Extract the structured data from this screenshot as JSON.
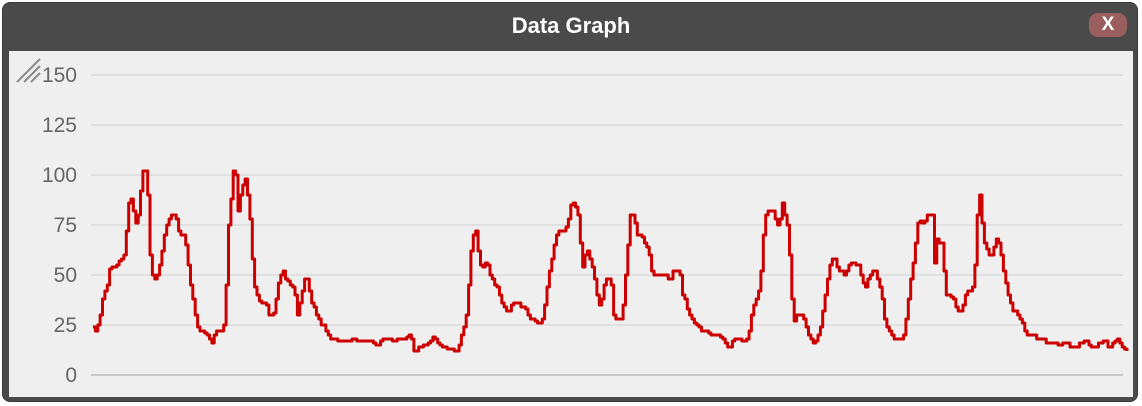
{
  "window": {
    "title": "Data Graph",
    "close_label": "X",
    "colors": {
      "titlebar": "#4a4a4a",
      "plot_background": "#efefef",
      "line": "#cc0000",
      "close_button": "#9a5e5e"
    }
  },
  "icons": {
    "resize": "resize-grip-icon"
  },
  "chart_data": {
    "type": "line",
    "title": "",
    "xlabel": "",
    "ylabel": "",
    "ylim": [
      0,
      160
    ],
    "yticks": [
      0,
      25,
      50,
      75,
      100,
      125,
      150
    ],
    "grid": true,
    "series": [
      {
        "color": "#cc0000",
        "values": [
          24,
          22,
          25,
          30,
          38,
          42,
          45,
          53,
          54,
          54,
          55,
          57,
          58,
          60,
          72,
          86,
          88,
          82,
          76,
          80,
          92,
          102,
          102,
          90,
          60,
          50,
          48,
          50,
          55,
          62,
          70,
          75,
          78,
          80,
          80,
          78,
          72,
          70,
          70,
          65,
          55,
          45,
          38,
          30,
          24,
          22,
          22,
          21,
          20,
          18,
          16,
          20,
          22,
          22,
          22,
          25,
          45,
          75,
          88,
          102,
          100,
          82,
          90,
          95,
          98,
          90,
          78,
          58,
          44,
          40,
          37,
          36,
          36,
          35,
          30,
          30,
          31,
          38,
          46,
          50,
          52,
          48,
          47,
          45,
          44,
          40,
          30,
          36,
          42,
          48,
          48,
          42,
          36,
          34,
          30,
          28,
          25,
          25,
          22,
          20,
          18,
          18,
          18,
          17,
          17,
          17,
          17,
          17,
          17,
          18,
          18,
          17,
          17,
          17,
          17,
          17,
          17,
          17,
          16,
          15,
          15,
          17,
          18,
          18,
          18,
          18,
          17,
          17,
          18,
          18,
          18,
          18,
          19,
          20,
          18,
          12,
          12,
          14,
          14,
          15,
          15,
          16,
          17,
          19,
          18,
          16,
          15,
          14,
          14,
          13,
          13,
          13,
          12,
          12,
          15,
          20,
          24,
          30,
          45,
          62,
          70,
          72,
          62,
          55,
          54,
          56,
          55,
          50,
          48,
          45,
          44,
          40,
          36,
          34,
          32,
          32,
          35,
          36,
          36,
          36,
          34,
          34,
          33,
          30,
          28,
          28,
          27,
          26,
          26,
          28,
          35,
          44,
          52,
          58,
          65,
          70,
          72,
          72,
          72,
          74,
          78,
          85,
          86,
          84,
          80,
          66,
          54,
          60,
          62,
          58,
          54,
          48,
          40,
          35,
          38,
          45,
          48,
          48,
          45,
          30,
          28,
          28,
          28,
          35,
          50,
          65,
          80,
          80,
          76,
          70,
          70,
          69,
          66,
          64,
          60,
          52,
          50,
          50,
          50,
          50,
          50,
          50,
          48,
          48,
          52,
          52,
          52,
          50,
          40,
          38,
          33,
          30,
          28,
          26,
          25,
          24,
          22,
          22,
          22,
          21,
          20,
          20,
          20,
          20,
          19,
          18,
          16,
          14,
          14,
          17,
          18,
          18,
          18,
          17,
          17,
          18,
          22,
          30,
          35,
          38,
          42,
          52,
          70,
          80,
          82,
          82,
          82,
          78,
          75,
          78,
          86,
          80,
          75,
          60,
          38,
          27,
          30,
          30,
          30,
          28,
          24,
          20,
          18,
          16,
          17,
          20,
          24,
          32,
          40,
          48,
          55,
          58,
          58,
          54,
          52,
          52,
          50,
          52,
          55,
          56,
          56,
          55,
          55,
          50,
          46,
          44,
          48,
          50,
          52,
          52,
          48,
          44,
          38,
          28,
          24,
          22,
          20,
          18,
          18,
          18,
          18,
          20,
          28,
          38,
          48,
          56,
          66,
          76,
          77,
          76,
          77,
          80,
          80,
          80,
          56,
          68,
          66,
          66,
          52,
          40,
          40,
          39,
          38,
          34,
          32,
          32,
          35,
          40,
          42,
          42,
          44,
          55,
          80,
          90,
          76,
          66,
          63,
          60,
          60,
          64,
          68,
          66,
          60,
          52,
          46,
          40,
          36,
          32,
          32,
          30,
          28,
          26,
          22,
          20,
          20,
          20,
          20,
          18,
          18,
          18,
          18,
          16,
          16,
          16,
          16,
          16,
          15,
          15,
          16,
          16,
          16,
          14,
          14,
          14,
          14,
          16,
          16,
          17,
          17,
          15,
          14,
          14,
          14,
          16,
          16,
          17,
          17,
          14,
          14,
          16,
          17,
          18,
          16,
          14,
          13,
          12
        ]
      }
    ]
  }
}
